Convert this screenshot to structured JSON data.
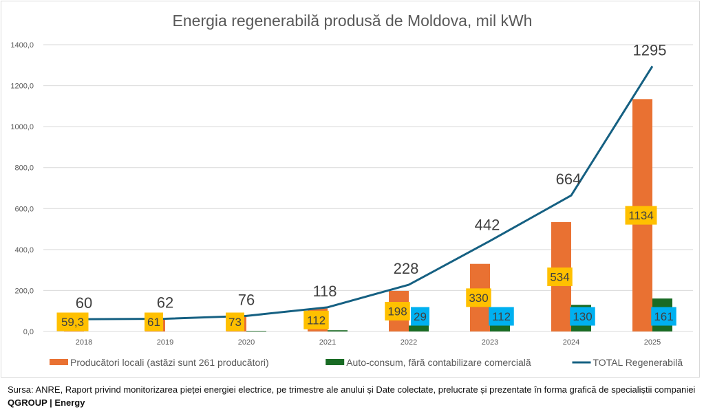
{
  "chart_data": {
    "type": "bar",
    "title": "Energia regenerabilă produsă de Moldova, mil kWh",
    "xlabel": "",
    "ylabel": "",
    "categories": [
      "2018",
      "2019",
      "2020",
      "2021",
      "2022",
      "2023",
      "2024",
      "2025"
    ],
    "ylim": [
      0,
      1400
    ],
    "yticks": [
      0,
      200,
      400,
      600,
      800,
      1000,
      1200,
      1400
    ],
    "ytick_labels": [
      "0,0",
      "200,0",
      "400,0",
      "600,0",
      "800,0",
      "1000,0",
      "1200,0",
      "1400,0"
    ],
    "grid": true,
    "legend_position": "bottom",
    "series": [
      {
        "name": "Producători locali (astăzi sunt 261 producători)",
        "kind": "bar",
        "color": "#E97132",
        "values": [
          59.3,
          61,
          73,
          112,
          198,
          330,
          534,
          1134
        ],
        "data_labels": [
          "59,3",
          "61",
          "73",
          "112",
          "198",
          "330",
          "534",
          "1134"
        ],
        "label_bg": "#FFC000"
      },
      {
        "name": "Auto-consum, fără contabilizare comercială",
        "kind": "bar",
        "color": "#196B24",
        "values": [
          0,
          0,
          3,
          6,
          29,
          112,
          130,
          161
        ],
        "data_labels": [
          null,
          null,
          null,
          null,
          "29",
          "112",
          "130",
          "161"
        ],
        "label_bg": "#00B0F0"
      },
      {
        "name": "TOTAL Regenerabilă",
        "kind": "line",
        "color": "#156082",
        "values": [
          60,
          62,
          76,
          118,
          228,
          442,
          664,
          1295
        ],
        "data_labels": [
          "60",
          "62",
          "76",
          "118",
          "228",
          "442",
          "664",
          "1295"
        ]
      }
    ]
  },
  "footer": {
    "text": "Sursa: ANRE, Raport privind monitorizarea pieței energiei electrice, pe trimestre ale anului și Date colectate, prelucrate și prezentate în forma grafică de specialiștii companiei ",
    "brand": "QGROUP | Energy"
  }
}
